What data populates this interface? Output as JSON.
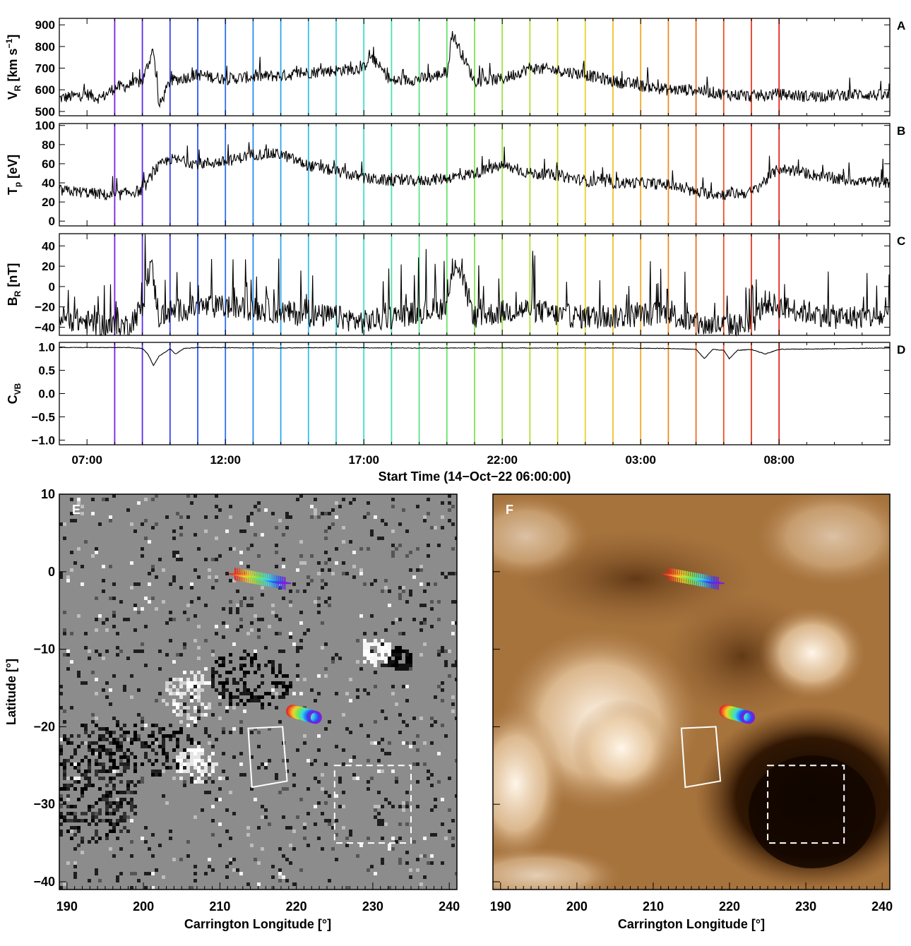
{
  "colors": {
    "trace": "#000000",
    "frame": "#000000",
    "rainbow": [
      "#7a1fe0",
      "#5a2ee8",
      "#3a3ff0",
      "#2a55f2",
      "#2f6ff0",
      "#2a8cf0",
      "#2aa6ef",
      "#35c0ec",
      "#3fd2e0",
      "#45dcc8",
      "#4ee0a8",
      "#5ae488",
      "#68e468",
      "#82e451",
      "#9ce043",
      "#b6de3a",
      "#cfdc33",
      "#e6d42e",
      "#f0c22a",
      "#f2a828",
      "#f28c26",
      "#ef6f24",
      "#ec5224",
      "#e83a22",
      "#e32720"
    ],
    "magnetogram_bg": "#8c8c8c",
    "euv_bright": "#fbe7cf",
    "euv_mid": "#a6733d",
    "euv_dark": "#1c0b00"
  },
  "xaxis": {
    "title": "Start Time (14−Oct−22 06:00:00)",
    "ticks": [
      {
        "label": "07:00",
        "hours": 1
      },
      {
        "label": "12:00",
        "hours": 6
      },
      {
        "label": "17:00",
        "hours": 11
      },
      {
        "label": "22:00",
        "hours": 16
      },
      {
        "label": "03:00",
        "hours": 21
      },
      {
        "label": "08:00",
        "hours": 26
      }
    ],
    "range_hours": [
      0,
      30
    ]
  },
  "panels": [
    {
      "letter": "A",
      "ylabel": "V",
      "ysub": "R",
      "yunit": "[km s",
      "ysup": "−1",
      "yclose": "]",
      "ylim": [
        480,
        930
      ],
      "ticks": [
        "500",
        "600",
        "700",
        "800",
        "900"
      ],
      "tickvals": [
        500,
        600,
        700,
        800,
        900
      ]
    },
    {
      "letter": "B",
      "ylabel": "T",
      "ysub": "p",
      "yunit": "[eV]",
      "ysup": "",
      "yclose": "",
      "ylim": [
        -5,
        102
      ],
      "ticks": [
        "0",
        "20",
        "40",
        "60",
        "80",
        "100"
      ],
      "tickvals": [
        0,
        20,
        40,
        60,
        80,
        100
      ]
    },
    {
      "letter": "C",
      "ylabel": "B",
      "ysub": "R",
      "yunit": "[nT]",
      "ysup": "",
      "yclose": "",
      "ylim": [
        -48,
        52
      ],
      "ticks": [
        "−40",
        "−20",
        "0",
        "20",
        "40"
      ],
      "tickvals": [
        -40,
        -20,
        0,
        20,
        40
      ]
    },
    {
      "letter": "D",
      "ylabel": "C",
      "ysub": "VB",
      "yunit": "",
      "ysup": "",
      "yclose": "",
      "ylim": [
        -1.1,
        1.1
      ],
      "ticks": [
        "−1.0",
        "−0.5",
        "0.0",
        "0.5",
        "1.0"
      ],
      "tickvals": [
        -1,
        -0.5,
        0,
        0.5,
        1
      ]
    }
  ],
  "chart_data": [
    {
      "type": "line",
      "panel": "A",
      "ylabel": "VR [km s−1]",
      "x_hours": [
        0,
        1,
        1.5,
        2,
        2.5,
        3,
        3.4,
        3.6,
        4,
        5,
        6,
        7,
        8,
        9,
        10,
        11,
        11.2,
        12,
        13,
        13.5,
        14,
        14.2,
        15,
        16,
        17,
        18,
        19,
        20,
        21,
        22,
        23,
        24,
        25,
        26,
        27,
        28,
        29,
        30
      ],
      "values": [
        560,
        580,
        560,
        610,
        620,
        640,
        790,
        520,
        640,
        670,
        650,
        660,
        665,
        680,
        690,
        700,
        760,
        640,
        650,
        660,
        680,
        860,
        640,
        650,
        700,
        690,
        670,
        640,
        620,
        600,
        600,
        580,
        570,
        580,
        570,
        575,
        580,
        570
      ]
    },
    {
      "type": "line",
      "panel": "B",
      "ylabel": "Tp [eV]",
      "x_hours": [
        0,
        1,
        1.5,
        2,
        2.5,
        3,
        3.5,
        4,
        5,
        6,
        7,
        8,
        9,
        10,
        11,
        12,
        13,
        14,
        15,
        16,
        17,
        18,
        19,
        20,
        21,
        22,
        23,
        24,
        25,
        26,
        27,
        28,
        29,
        30
      ],
      "values": [
        32,
        30,
        28,
        26,
        30,
        32,
        55,
        65,
        60,
        62,
        70,
        70,
        58,
        52,
        45,
        42,
        42,
        45,
        50,
        58,
        50,
        48,
        42,
        40,
        40,
        38,
        30,
        28,
        30,
        55,
        50,
        44,
        42,
        40
      ]
    },
    {
      "type": "line",
      "panel": "C",
      "ylabel": "BR [nT]",
      "x_hours": [
        0,
        1,
        2,
        2.5,
        3,
        3.3,
        3.6,
        4,
        5,
        6,
        7,
        8,
        9,
        10,
        11,
        12,
        13,
        14,
        14.3,
        15,
        16,
        17,
        18,
        19,
        20,
        21,
        22,
        23,
        24,
        25,
        25.5,
        26,
        27,
        28,
        29,
        30
      ],
      "values": [
        -30,
        -35,
        -40,
        -38,
        -20,
        25,
        -30,
        -25,
        -20,
        -20,
        -22,
        -25,
        -28,
        -30,
        -35,
        -30,
        -25,
        -20,
        28,
        -30,
        -25,
        -22,
        -28,
        -30,
        -30,
        -28,
        -25,
        -38,
        -38,
        -38,
        -15,
        -20,
        -25,
        -30,
        -30,
        -30
      ]
    },
    {
      "type": "line",
      "panel": "D",
      "ylabel": "CVB",
      "x_hours": [
        0,
        2.5,
        3,
        3.2,
        3.4,
        3.6,
        4,
        4.2,
        4.5,
        5,
        8,
        10,
        12,
        20,
        22,
        23,
        23.3,
        23.6,
        24,
        24.2,
        24.5,
        25,
        25.5,
        26,
        30
      ],
      "values": [
        0.99,
        0.99,
        0.97,
        0.85,
        0.6,
        0.8,
        0.96,
        0.85,
        0.97,
        0.99,
        0.98,
        0.99,
        0.98,
        0.98,
        0.97,
        0.95,
        0.75,
        0.95,
        0.93,
        0.75,
        0.93,
        0.95,
        0.85,
        0.95,
        0.98
      ]
    },
    {
      "type": "image",
      "panel": "E",
      "description_label": "E",
      "xlabel": "Carrington Longitude [°]",
      "ylabel": "Latitude [°]",
      "xlim": [
        189,
        241
      ],
      "ylim": [
        -41,
        10
      ],
      "xticks": [
        "190",
        "200",
        "210",
        "220",
        "230",
        "240"
      ],
      "yticks": [
        "10",
        "0",
        "−10",
        "−20",
        "−30",
        "−40"
      ],
      "crosses": {
        "lon_start": 212,
        "lon_end": 218.5,
        "lat_start": -0.3,
        "lat_end": -1.5,
        "count": 25
      },
      "circles": {
        "lon_start": 219.5,
        "lon_end": 222.5,
        "lat_start": -18,
        "lat_end": -18.8,
        "count": 25
      },
      "solid_box": [
        [
          213.7,
          -20.2
        ],
        [
          218.2,
          -20.0
        ],
        [
          218.8,
          -27.0
        ],
        [
          214.2,
          -27.8
        ]
      ],
      "dashed_box": [
        [
          225,
          -25
        ],
        [
          235,
          -25
        ],
        [
          235,
          -35
        ],
        [
          225,
          -35
        ]
      ]
    },
    {
      "type": "image",
      "panel": "F",
      "description_label": "F",
      "xlabel": "Carrington Longitude [°]",
      "xlim": [
        189,
        241
      ],
      "ylim": [
        -41,
        10
      ],
      "xticks": [
        "190",
        "200",
        "210",
        "220",
        "230",
        "240"
      ],
      "crosses": {
        "lon_start": 212,
        "lon_end": 218.5,
        "lat_start": -0.3,
        "lat_end": -1.5,
        "count": 25
      },
      "circles": {
        "lon_start": 219.5,
        "lon_end": 222.5,
        "lat_start": -18,
        "lat_end": -18.8,
        "count": 25
      },
      "solid_box": [
        [
          213.7,
          -20.2
        ],
        [
          218.2,
          -20.0
        ],
        [
          218.8,
          -27.0
        ],
        [
          214.2,
          -27.8
        ]
      ],
      "dashed_box": [
        [
          225,
          -25
        ],
        [
          235,
          -25
        ],
        [
          235,
          -35
        ],
        [
          225,
          -35
        ]
      ]
    }
  ],
  "vlines_hours": [
    2,
    3,
    4,
    5,
    6,
    7,
    8,
    9,
    10,
    11,
    12,
    13,
    14,
    15,
    16,
    17,
    18,
    19,
    20,
    21,
    22,
    23,
    24,
    25,
    26
  ]
}
